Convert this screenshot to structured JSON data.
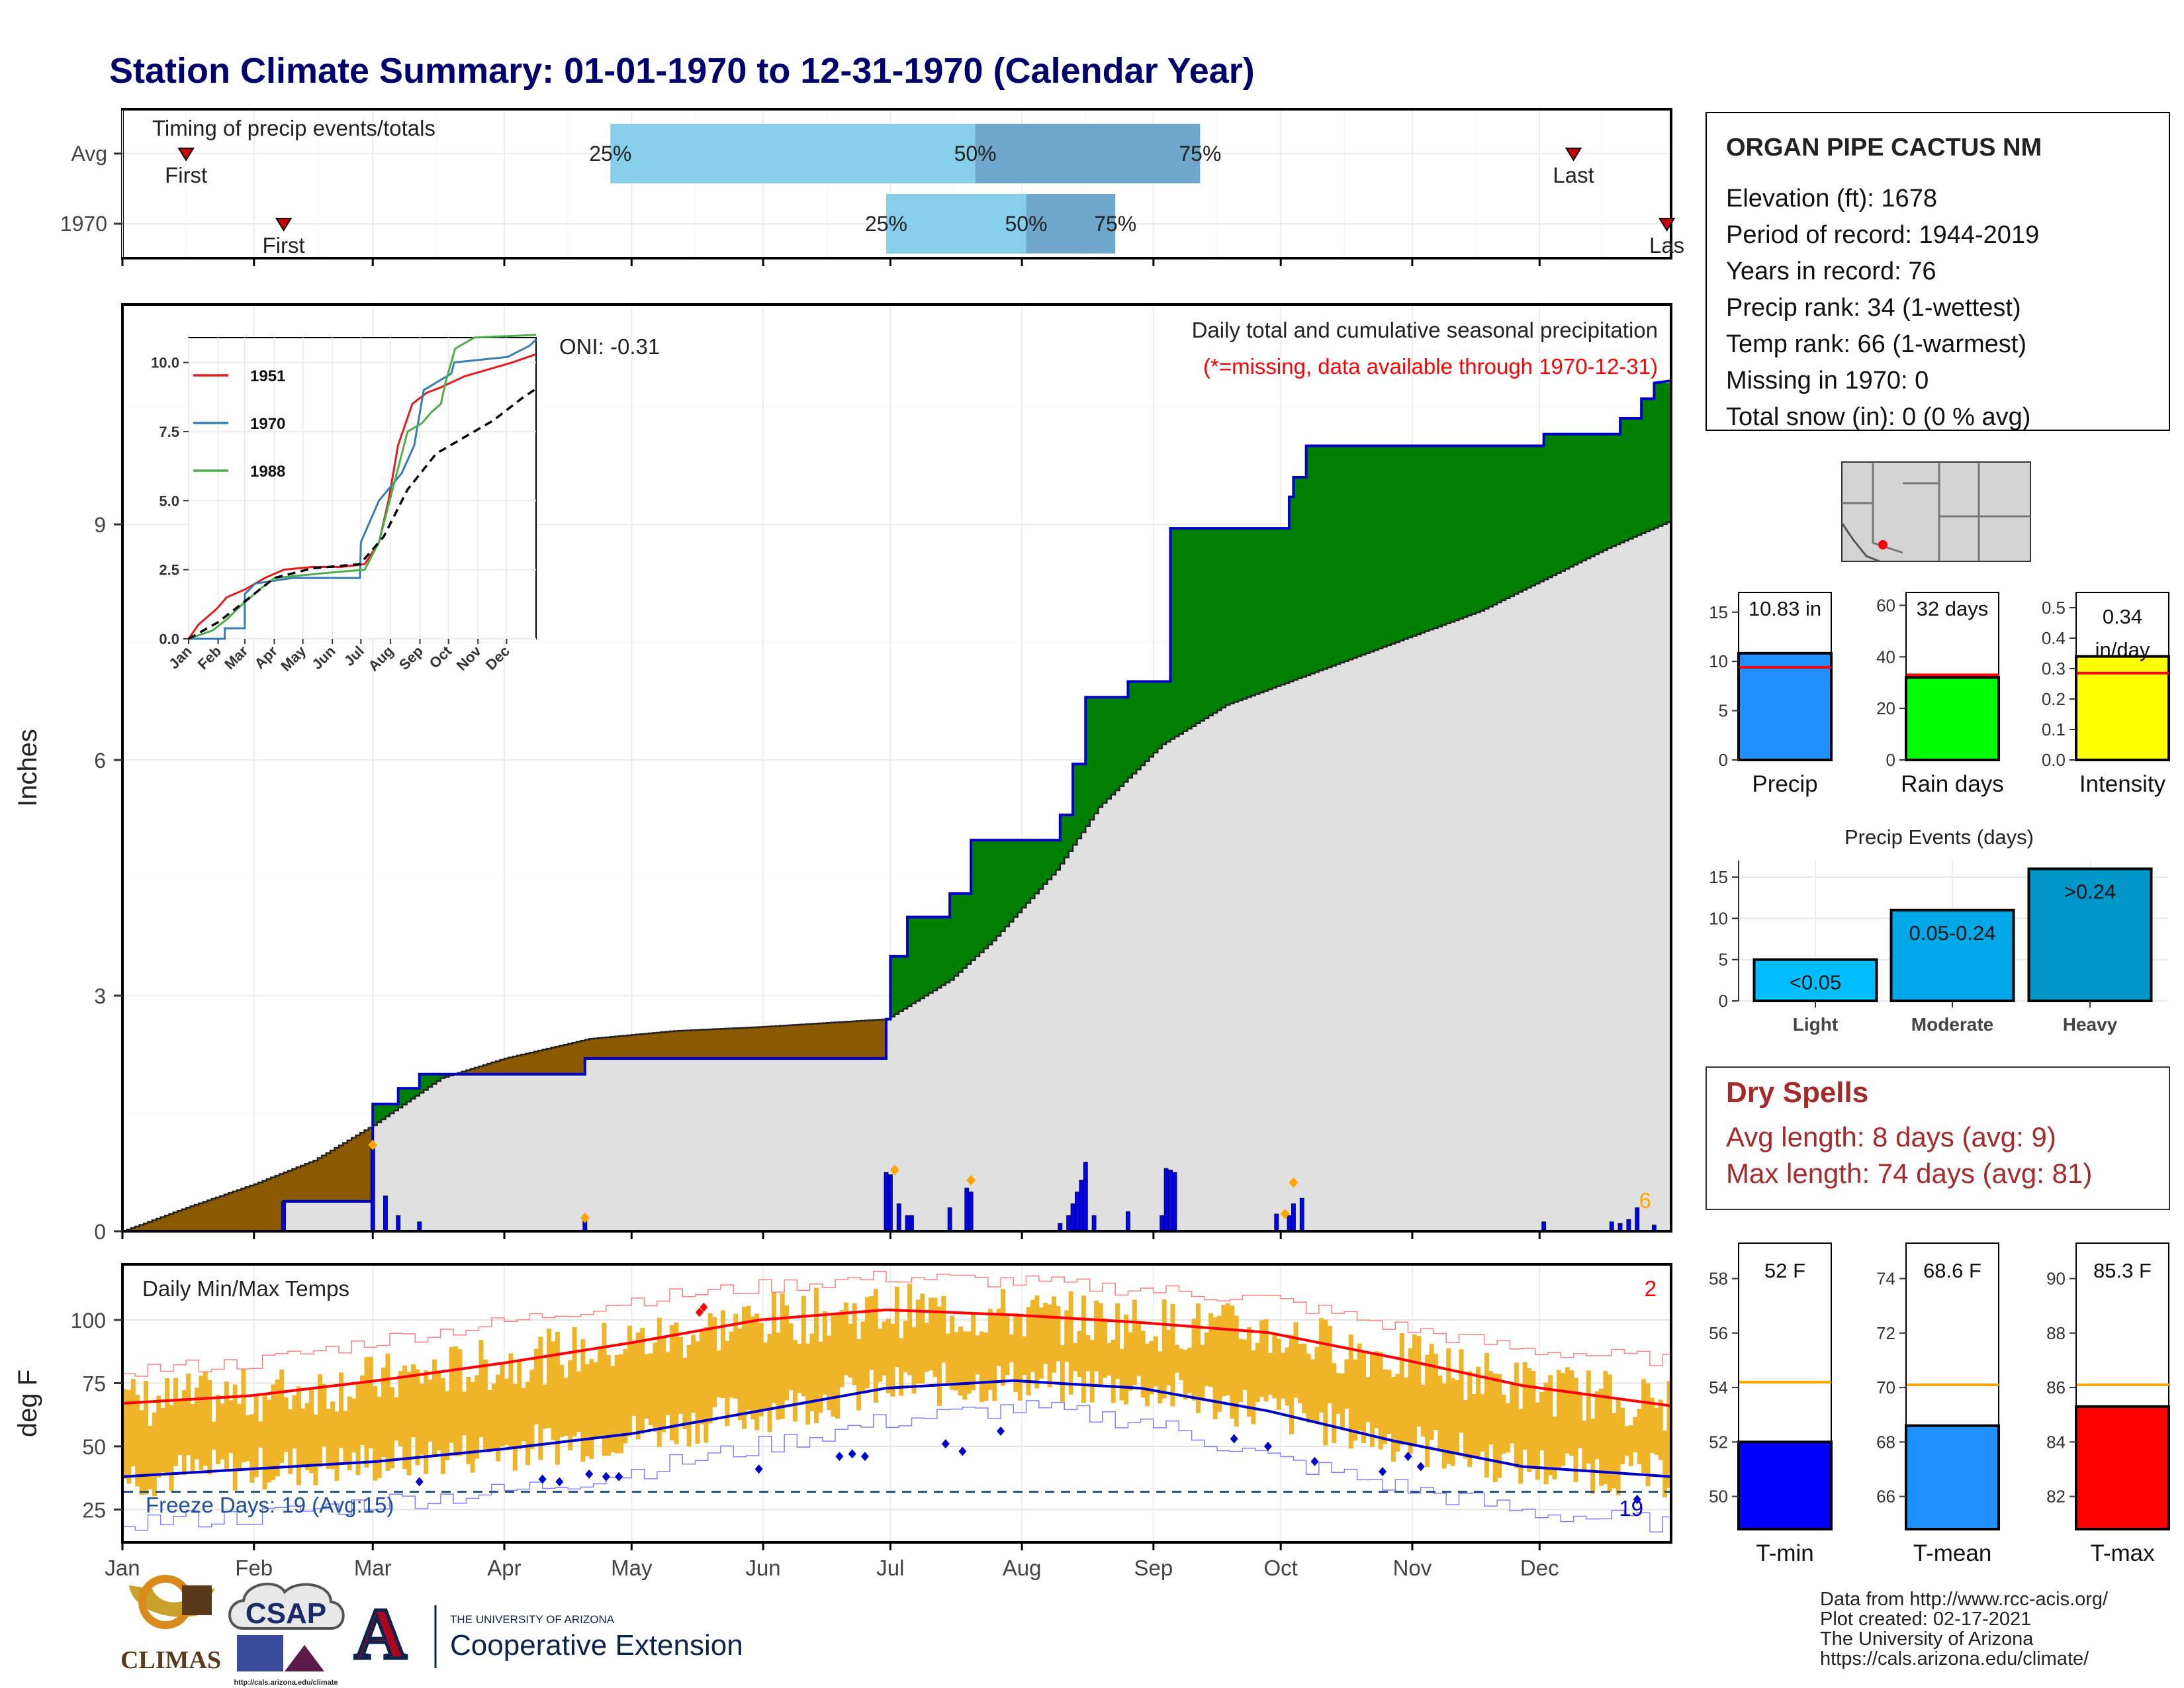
{
  "title": "Station Climate Summary: 01-01-1970 to 12-31-1970 (Calendar Year)",
  "colors": {
    "title": "#00006e",
    "above_avg": "#008000",
    "below_avg": "#8b5a00",
    "climo_fill": "#e0e0e0",
    "precip_line": "#0000cc",
    "bars": "#0000ff",
    "quartile_light": "#87ceeb",
    "quartile_dark": "#6fa6cc",
    "temp_bars": "#f0b429",
    "tmax_line": "#ff0000",
    "tmin_line": "#0000cc",
    "dry_spells": "#a52a2a",
    "rank_line": "#ff0000",
    "avg_line": "#ffa500",
    "orange": "#ffa500"
  },
  "timing": {
    "title": "Timing of precip events/totals",
    "rows": [
      {
        "label": "Avg",
        "first_day": 15,
        "q25_day": 115,
        "q50_day": 201,
        "q75_day": 254,
        "last_day": 342,
        "first_label": "First",
        "last_label": "Last",
        "q25_label": "25%",
        "q50_label": "50%",
        "q75_label": "75%"
      },
      {
        "label": "1970",
        "first_day": 38,
        "q25_day": 180,
        "q50_day": 213,
        "q75_day": 234,
        "last_day": 364,
        "first_label": "First",
        "last_label": "Las",
        "q25_label": "25%",
        "q50_label": "50%",
        "q75_label": "75%"
      }
    ]
  },
  "precip_panel": {
    "ylabel": "Inches",
    "legend_title": "Daily total and cumulative seasonal precipitation",
    "legend_note": "(*=missing, data available through 1970-12-31)",
    "oni_label": "ONI: -0.31",
    "yticks": [
      "0",
      "3",
      "6",
      "9"
    ],
    "corner_count": "6"
  },
  "inset": {
    "yticks": [
      "0.0",
      "2.5",
      "5.0",
      "7.5",
      "10.0"
    ],
    "xticks": [
      "Jan",
      "Feb",
      "Mar",
      "Apr",
      "May",
      "Jun",
      "Jul",
      "Aug",
      "Sep",
      "Oct",
      "Nov",
      "Dec"
    ],
    "legend": [
      {
        "name": "1951",
        "color": "#e41a1c"
      },
      {
        "name": "1970",
        "color": "#377eb8"
      },
      {
        "name": "1988",
        "color": "#4daf4a"
      }
    ]
  },
  "temp_panel": {
    "ylabel": "deg F",
    "title": "Daily Min/Max Temps",
    "yticks": [
      "25",
      "50",
      "75",
      "100"
    ],
    "freeze_label": "Freeze Days: 19 (Avg:15)",
    "corner_max_count": "2",
    "corner_min_count": "19"
  },
  "months": [
    "Jan",
    "Feb",
    "Mar",
    "Apr",
    "May",
    "Jun",
    "Jul",
    "Aug",
    "Sep",
    "Oct",
    "Nov",
    "Dec"
  ],
  "station": {
    "name": "ORGAN PIPE CACTUS NM",
    "lines": [
      "Elevation (ft): 1678",
      "Period of record: 1944-2019",
      "Years in record: 76",
      "Precip rank: 34 (1-wettest)",
      "Temp rank: 66 (1-warmest)",
      "Missing in 1970: 0",
      "Total snow (in): 0 (0 % avg)"
    ]
  },
  "dry_spells": {
    "title": "Dry Spells",
    "avg_line": "Avg length: 8 days (avg: 9)",
    "max_line": "Max length: 74 days (avg: 81)"
  },
  "events_title": "Precip Events (days)",
  "footer": {
    "lines": [
      "Data from http://www.rcc-acis.org/",
      "Plot created: 02-17-2021",
      "The University of Arizona",
      "https://cals.arizona.edu/climate/"
    ],
    "logos": {
      "climas": "CLIMAS",
      "csap": "CSAP",
      "csap_url": "http://cals.arizona.edu/climate",
      "ua_letter": "A",
      "ua_small": "THE UNIVERSITY OF ARIZONA",
      "ua_big": "Cooperative Extension"
    }
  },
  "chart_data": [
    {
      "type": "area",
      "name": "cumulative_precip",
      "x": [
        "Jan",
        "Feb",
        "Mar",
        "Apr",
        "May",
        "Jun",
        "Jul",
        "Aug",
        "Sep",
        "Oct",
        "Nov",
        "Dec"
      ],
      "observed_steps": [
        [
          0,
          0
        ],
        [
          38,
          0
        ],
        [
          38,
          0.38
        ],
        [
          59,
          0.38
        ],
        [
          59,
          1.62
        ],
        [
          65,
          1.62
        ],
        [
          65,
          1.82
        ],
        [
          70,
          1.82
        ],
        [
          70,
          2.0
        ],
        [
          109,
          2.0
        ],
        [
          109,
          2.2
        ],
        [
          180,
          2.2
        ],
        [
          180,
          2.7
        ],
        [
          181,
          2.7
        ],
        [
          181,
          3.5
        ],
        [
          185,
          3.5
        ],
        [
          185,
          4.0
        ],
        [
          195,
          4.0
        ],
        [
          195,
          4.3
        ],
        [
          200,
          4.3
        ],
        [
          200,
          4.98
        ],
        [
          221,
          4.98
        ],
        [
          221,
          5.3
        ],
        [
          224,
          5.3
        ],
        [
          224,
          5.95
        ],
        [
          227,
          5.95
        ],
        [
          227,
          6.8
        ],
        [
          237,
          6.8
        ],
        [
          237,
          7.0
        ],
        [
          247,
          7.0
        ],
        [
          247,
          8.95
        ],
        [
          275,
          8.95
        ],
        [
          275,
          9.35
        ],
        [
          276,
          9.35
        ],
        [
          276,
          9.6
        ],
        [
          279,
          9.6
        ],
        [
          279,
          10.0
        ],
        [
          335,
          10.0
        ],
        [
          335,
          10.15
        ],
        [
          353,
          10.15
        ],
        [
          353,
          10.35
        ],
        [
          358,
          10.35
        ],
        [
          358,
          10.6
        ],
        [
          361,
          10.6
        ],
        [
          361,
          10.8
        ],
        [
          365,
          10.83
        ]
      ],
      "average_curve": [
        [
          0,
          0
        ],
        [
          15,
          0.3
        ],
        [
          31,
          0.6
        ],
        [
          45,
          0.9
        ],
        [
          59,
          1.35
        ],
        [
          75,
          1.95
        ],
        [
          90,
          2.2
        ],
        [
          110,
          2.45
        ],
        [
          130,
          2.55
        ],
        [
          150,
          2.6
        ],
        [
          180,
          2.7
        ],
        [
          195,
          3.2
        ],
        [
          205,
          3.7
        ],
        [
          220,
          4.6
        ],
        [
          230,
          5.4
        ],
        [
          245,
          6.2
        ],
        [
          260,
          6.7
        ],
        [
          275,
          7.0
        ],
        [
          290,
          7.3
        ],
        [
          305,
          7.6
        ],
        [
          320,
          7.9
        ],
        [
          335,
          8.3
        ],
        [
          350,
          8.7
        ],
        [
          365,
          9.05
        ]
      ],
      "daily_bars": [
        [
          38,
          0.38
        ],
        [
          59,
          1.1
        ],
        [
          62,
          0.45
        ],
        [
          65,
          0.2
        ],
        [
          70,
          0.12
        ],
        [
          109,
          0.17
        ],
        [
          180,
          0.75
        ],
        [
          181,
          0.72
        ],
        [
          183,
          0.35
        ],
        [
          185,
          0.2
        ],
        [
          186,
          0.2
        ],
        [
          195,
          0.3
        ],
        [
          199,
          0.55
        ],
        [
          200,
          0.5
        ],
        [
          221,
          0.1
        ],
        [
          223,
          0.2
        ],
        [
          224,
          0.35
        ],
        [
          225,
          0.5
        ],
        [
          226,
          0.65
        ],
        [
          227,
          0.88
        ],
        [
          229,
          0.2
        ],
        [
          237,
          0.25
        ],
        [
          245,
          0.2
        ],
        [
          246,
          0.8
        ],
        [
          247,
          0.78
        ],
        [
          248,
          0.75
        ],
        [
          272,
          0.22
        ],
        [
          275,
          0.2
        ],
        [
          276,
          0.35
        ],
        [
          278,
          0.42
        ],
        [
          335,
          0.12
        ],
        [
          351,
          0.12
        ],
        [
          353,
          0.1
        ],
        [
          355,
          0.15
        ],
        [
          357,
          0.3
        ],
        [
          361,
          0.08
        ]
      ],
      "ylim": [
        0,
        11.8
      ]
    },
    {
      "type": "line",
      "name": "inset_comparison_years",
      "series": [
        {
          "name": "1951",
          "points": [
            [
              0,
              0
            ],
            [
              10,
              0.5
            ],
            [
              20,
              0.8
            ],
            [
              30,
              1.1
            ],
            [
              40,
              1.5
            ],
            [
              60,
              1.8
            ],
            [
              70,
              2.0
            ],
            [
              80,
              2.2
            ],
            [
              100,
              2.5
            ],
            [
              130,
              2.6
            ],
            [
              160,
              2.6
            ],
            [
              185,
              2.7
            ],
            [
              200,
              3.5
            ],
            [
              210,
              5.0
            ],
            [
              220,
              7.0
            ],
            [
              235,
              8.5
            ],
            [
              250,
              8.9
            ],
            [
              265,
              9.1
            ],
            [
              290,
              9.5
            ],
            [
              320,
              9.8
            ],
            [
              340,
              10.0
            ],
            [
              365,
              10.3
            ]
          ]
        },
        {
          "name": "1970",
          "points": [
            [
              0,
              0
            ],
            [
              38,
              0
            ],
            [
              38,
              0.38
            ],
            [
              59,
              0.38
            ],
            [
              59,
              1.62
            ],
            [
              70,
              2.0
            ],
            [
              109,
              2.2
            ],
            [
              180,
              2.2
            ],
            [
              181,
              3.5
            ],
            [
              200,
              5.0
            ],
            [
              224,
              6.0
            ],
            [
              237,
              7.0
            ],
            [
              247,
              9.0
            ],
            [
              276,
              9.6
            ],
            [
              279,
              10.0
            ],
            [
              335,
              10.2
            ],
            [
              358,
              10.6
            ],
            [
              365,
              10.83
            ]
          ]
        },
        {
          "name": "1988",
          "points": [
            [
              0,
              0
            ],
            [
              25,
              0.3
            ],
            [
              40,
              0.7
            ],
            [
              55,
              1.2
            ],
            [
              75,
              1.8
            ],
            [
              90,
              2.2
            ],
            [
              120,
              2.3
            ],
            [
              150,
              2.4
            ],
            [
              185,
              2.5
            ],
            [
              200,
              3.5
            ],
            [
              215,
              5.5
            ],
            [
              230,
              7.5
            ],
            [
              245,
              7.8
            ],
            [
              255,
              8.2
            ],
            [
              265,
              8.5
            ],
            [
              270,
              9.3
            ],
            [
              280,
              10.5
            ],
            [
              300,
              10.9
            ],
            [
              365,
              11.0
            ]
          ]
        },
        {
          "name": "Avg",
          "dashed": true,
          "points": [
            [
              0,
              0
            ],
            [
              31,
              0.6
            ],
            [
              59,
              1.35
            ],
            [
              90,
              2.2
            ],
            [
              130,
              2.55
            ],
            [
              180,
              2.7
            ],
            [
              205,
              3.7
            ],
            [
              230,
              5.4
            ],
            [
              260,
              6.7
            ],
            [
              290,
              7.3
            ],
            [
              320,
              7.9
            ],
            [
              350,
              8.7
            ],
            [
              365,
              9.05
            ]
          ]
        }
      ],
      "xlim": [
        0,
        365
      ],
      "ylim": [
        0,
        11
      ]
    },
    {
      "type": "bar",
      "name": "daily_temps",
      "ylabel": "deg F",
      "normal_max": [
        [
          0,
          67
        ],
        [
          30,
          70
        ],
        [
          60,
          76
        ],
        [
          90,
          83
        ],
        [
          120,
          91
        ],
        [
          150,
          100
        ],
        [
          180,
          104
        ],
        [
          210,
          102
        ],
        [
          240,
          99
        ],
        [
          270,
          95
        ],
        [
          300,
          85
        ],
        [
          330,
          74
        ],
        [
          365,
          66
        ]
      ],
      "normal_min": [
        [
          0,
          38
        ],
        [
          30,
          41
        ],
        [
          60,
          44
        ],
        [
          90,
          49
        ],
        [
          120,
          55
        ],
        [
          150,
          64
        ],
        [
          180,
          73
        ],
        [
          210,
          76
        ],
        [
          240,
          73
        ],
        [
          270,
          64
        ],
        [
          300,
          52
        ],
        [
          330,
          42
        ],
        [
          365,
          38
        ]
      ],
      "record_max": [
        [
          0,
          80
        ],
        [
          30,
          83
        ],
        [
          60,
          92
        ],
        [
          90,
          99
        ],
        [
          120,
          108
        ],
        [
          150,
          113
        ],
        [
          180,
          117
        ],
        [
          210,
          115
        ],
        [
          240,
          112
        ],
        [
          270,
          108
        ],
        [
          300,
          97
        ],
        [
          330,
          88
        ],
        [
          365,
          84
        ]
      ],
      "record_min": [
        [
          0,
          20
        ],
        [
          30,
          22
        ],
        [
          60,
          28
        ],
        [
          90,
          32
        ],
        [
          120,
          40
        ],
        [
          150,
          50
        ],
        [
          180,
          60
        ],
        [
          210,
          65
        ],
        [
          240,
          60
        ],
        [
          270,
          45
        ],
        [
          300,
          34
        ],
        [
          330,
          24
        ],
        [
          365,
          19
        ]
      ],
      "freeze_line": 32,
      "ylim": [
        12,
        122
      ]
    },
    {
      "type": "bar",
      "name": "precip_total",
      "categories": [
        "Precip"
      ],
      "values": [
        10.83
      ],
      "avg": 9.4,
      "label": "10.83 in",
      "yticks": [
        "0",
        "5",
        "10",
        "15"
      ],
      "ylim": [
        0,
        17
      ],
      "color": "#1e90ff"
    },
    {
      "type": "bar",
      "name": "rain_days",
      "categories": [
        "Rain days"
      ],
      "values": [
        32
      ],
      "avg": 33,
      "label": "32 days",
      "yticks": [
        "0",
        "20",
        "40",
        "60"
      ],
      "ylim": [
        0,
        65
      ],
      "color": "#00ff00"
    },
    {
      "type": "bar",
      "name": "intensity",
      "categories": [
        "Intensity"
      ],
      "values": [
        0.34
      ],
      "avg": 0.285,
      "label": "0.34 in/day",
      "yticks": [
        "0.0",
        "0.1",
        "0.2",
        "0.3",
        "0.4",
        "0.5"
      ],
      "ylim": [
        0,
        0.55
      ],
      "color": "#ffff00"
    },
    {
      "type": "bar",
      "name": "precip_events",
      "categories": [
        "Light",
        "Moderate",
        "Heavy"
      ],
      "values": [
        5,
        11,
        16
      ],
      "labels": [
        "<0.05",
        "0.05-0.24",
        ">0.24"
      ],
      "colors": [
        "#00bfff",
        "#00a8e8",
        "#0096c7"
      ],
      "yticks": [
        "0",
        "5",
        "10",
        "15"
      ],
      "ylim": [
        0,
        17
      ]
    },
    {
      "type": "bar",
      "name": "tmin",
      "categories": [
        "T-min"
      ],
      "values": [
        52
      ],
      "avg": 54.2,
      "label": "52 F",
      "yticks": [
        "50",
        "52",
        "54",
        "56",
        "58"
      ],
      "ylim": [
        48.8,
        59.3
      ],
      "color": "#0000ff"
    },
    {
      "type": "bar",
      "name": "tmean",
      "categories": [
        "T-mean"
      ],
      "values": [
        68.6
      ],
      "avg": 70.1,
      "label": "68.6 F",
      "yticks": [
        "66",
        "68",
        "70",
        "72",
        "74"
      ],
      "ylim": [
        64.8,
        75.3
      ],
      "color": "#1e90ff"
    },
    {
      "type": "bar",
      "name": "tmax",
      "categories": [
        "T-max"
      ],
      "values": [
        85.3
      ],
      "avg": 86.1,
      "label": "85.3 F",
      "yticks": [
        "82",
        "84",
        "86",
        "88",
        "90"
      ],
      "ylim": [
        80.8,
        91.3
      ],
      "color": "#ff0000"
    }
  ]
}
